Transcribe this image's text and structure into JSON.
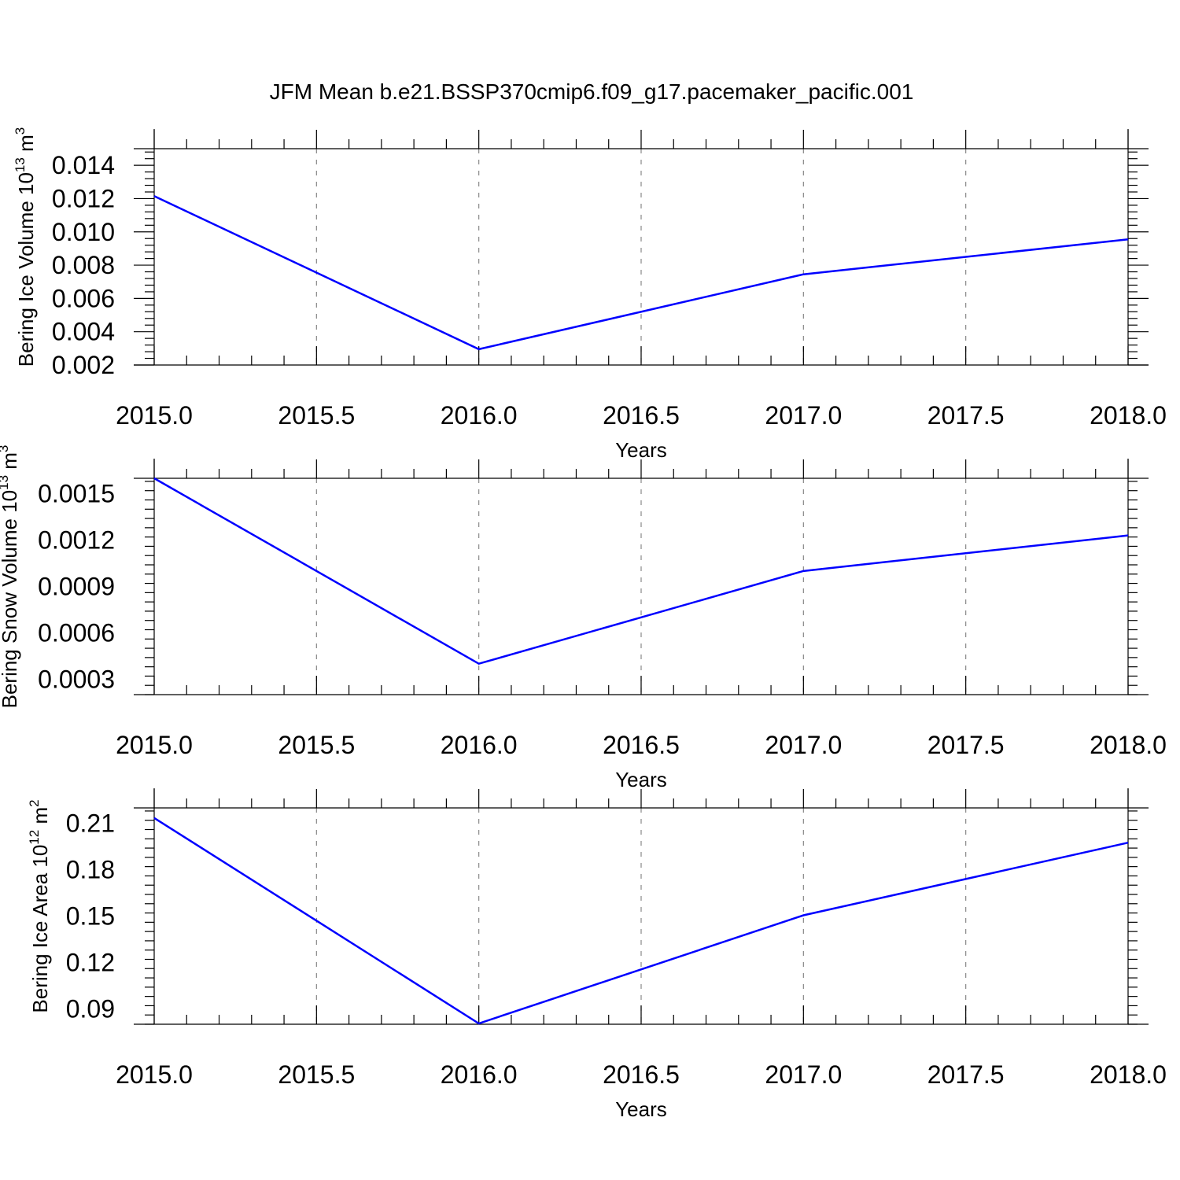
{
  "figure": {
    "title": "JFM Mean b.e21.BSSP370cmip6.f09_g17.pacemaker_pacific.001"
  },
  "colors": {
    "series": "#0000ff",
    "grid": "#888888",
    "axis": "#000000"
  },
  "chart_data": [
    {
      "type": "line",
      "title": "",
      "xlabel": "Years",
      "ylabel": "Bering Ice Volume 10",
      "ylabel_sup": "13",
      "ylabel_unit": " m",
      "ylabel_unit_sup": "3",
      "xlim": [
        2015,
        2018
      ],
      "ylim": [
        0.002,
        0.015
      ],
      "x_ticks": [
        2015.0,
        2015.5,
        2016.0,
        2016.5,
        2017.0,
        2017.5,
        2018.0
      ],
      "x_tick_labels": [
        "2015.0",
        "2015.5",
        "2016.0",
        "2016.5",
        "2017.0",
        "2017.5",
        "2018.0"
      ],
      "y_ticks": [
        0.002,
        0.004,
        0.006,
        0.008,
        0.01,
        0.012,
        0.014
      ],
      "y_tick_labels": [
        "0.002",
        "0.004",
        "0.006",
        "0.008",
        "0.010",
        "0.012",
        "0.014"
      ],
      "y_minor_step": 0.0004,
      "x_minor_step": 0.1,
      "grid": "vertical-dashed",
      "x": [
        2015,
        2016,
        2017,
        2018
      ],
      "series": [
        {
          "values": [
            0.01215,
            0.00295,
            0.00745,
            0.00955
          ]
        }
      ]
    },
    {
      "type": "line",
      "title": "",
      "xlabel": "Years",
      "ylabel": "Bering Snow Volume 10",
      "ylabel_sup": "13",
      "ylabel_unit": " m",
      "ylabel_unit_sup": "3",
      "xlim": [
        2015,
        2018
      ],
      "ylim": [
        0.0002,
        0.0016
      ],
      "x_ticks": [
        2015.0,
        2015.5,
        2016.0,
        2016.5,
        2017.0,
        2017.5,
        2018.0
      ],
      "x_tick_labels": [
        "2015.0",
        "2015.5",
        "2016.0",
        "2016.5",
        "2017.0",
        "2017.5",
        "2018.0"
      ],
      "y_ticks": [
        0.0003,
        0.0006,
        0.0009,
        0.0012,
        0.0015
      ],
      "y_tick_labels": [
        "0.0003",
        "0.0006",
        "0.0009",
        "0.0012",
        "0.0015"
      ],
      "y_minor_step": 6e-05,
      "x_minor_step": 0.1,
      "grid": "vertical-dashed",
      "x": [
        2015,
        2016,
        2017,
        2018
      ],
      "series": [
        {
          "values": [
            0.0016,
            0.0004,
            0.001,
            0.00123
          ]
        }
      ]
    },
    {
      "type": "line",
      "title": "",
      "xlabel": "Years",
      "ylabel": "Bering Ice Area 10",
      "ylabel_sup": "12",
      "ylabel_unit": " m",
      "ylabel_unit_sup": "2",
      "xlim": [
        2015,
        2018
      ],
      "ylim": [
        0.08,
        0.22
      ],
      "x_ticks": [
        2015.0,
        2015.5,
        2016.0,
        2016.5,
        2017.0,
        2017.5,
        2018.0
      ],
      "x_tick_labels": [
        "2015.0",
        "2015.5",
        "2016.0",
        "2016.5",
        "2017.0",
        "2017.5",
        "2018.0"
      ],
      "y_ticks": [
        0.09,
        0.12,
        0.15,
        0.18,
        0.21
      ],
      "y_tick_labels": [
        "0.09",
        "0.12",
        "0.15",
        "0.18",
        "0.21"
      ],
      "y_minor_step": 0.006,
      "x_minor_step": 0.1,
      "grid": "vertical-dashed",
      "x": [
        2015,
        2016,
        2017,
        2018
      ],
      "series": [
        {
          "values": [
            0.2135,
            0.0805,
            0.1505,
            0.1975
          ]
        }
      ]
    }
  ]
}
